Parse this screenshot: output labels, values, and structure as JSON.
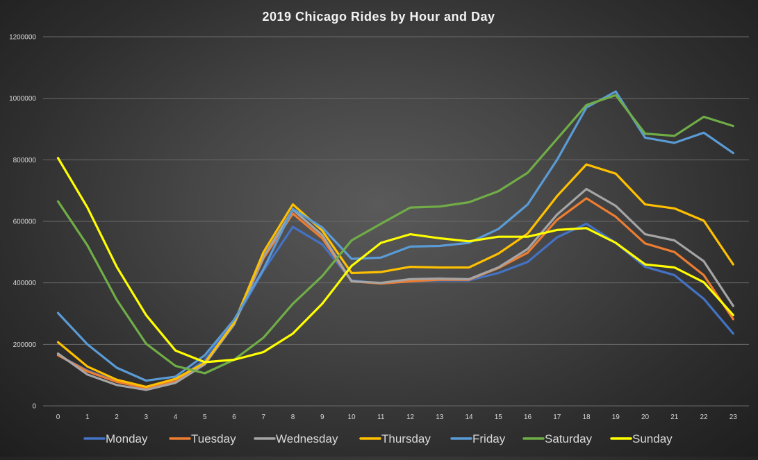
{
  "chart_data": {
    "type": "line",
    "title": "2019 Chicago Rides by Hour and Day",
    "xlabel": "",
    "ylabel": "",
    "x": [
      0,
      1,
      2,
      3,
      4,
      5,
      6,
      7,
      8,
      9,
      10,
      11,
      12,
      13,
      14,
      15,
      16,
      17,
      18,
      19,
      20,
      21,
      22,
      23
    ],
    "ylim": [
      0,
      1200000
    ],
    "yticks": [
      0,
      200000,
      400000,
      600000,
      800000,
      1000000,
      1200000
    ],
    "grid": true,
    "legend_position": "bottom",
    "series": [
      {
        "name": "Monday",
        "color": "#4472c4",
        "values": [
          165000,
          115000,
          80000,
          60000,
          82000,
          150000,
          275000,
          440000,
          582000,
          525000,
          408000,
          398000,
          405000,
          408000,
          408000,
          432000,
          468000,
          548000,
          592000,
          530000,
          452000,
          425000,
          348000,
          235000
        ]
      },
      {
        "name": "Tuesday",
        "color": "#ed7d31",
        "values": [
          165000,
          112000,
          78000,
          58000,
          80000,
          138000,
          268000,
          480000,
          625000,
          545000,
          405000,
          398000,
          405000,
          410000,
          410000,
          448000,
          498000,
          605000,
          675000,
          615000,
          528000,
          500000,
          425000,
          282000
        ]
      },
      {
        "name": "Wednesday",
        "color": "#a5a5a5",
        "values": [
          170000,
          102000,
          68000,
          52000,
          75000,
          135000,
          265000,
          485000,
          638000,
          555000,
          405000,
          400000,
          412000,
          414000,
          412000,
          450000,
          510000,
          622000,
          705000,
          650000,
          558000,
          538000,
          470000,
          325000
        ]
      },
      {
        "name": "Thursday",
        "color": "#ffc000",
        "values": [
          207000,
          128000,
          85000,
          62000,
          88000,
          140000,
          270000,
          500000,
          655000,
          570000,
          432000,
          435000,
          452000,
          450000,
          450000,
          495000,
          560000,
          682000,
          785000,
          755000,
          655000,
          642000,
          602000,
          460000
        ]
      },
      {
        "name": "Friday",
        "color": "#5b9bd5",
        "values": [
          302000,
          200000,
          124000,
          82000,
          95000,
          165000,
          280000,
          445000,
          640000,
          580000,
          478000,
          482000,
          518000,
          520000,
          530000,
          575000,
          655000,
          800000,
          970000,
          1022000,
          872000,
          855000,
          888000,
          822000
        ]
      },
      {
        "name": "Saturday",
        "color": "#70ad47",
        "values": [
          665000,
          522000,
          345000,
          202000,
          130000,
          106000,
          150000,
          222000,
          332000,
          422000,
          538000,
          592000,
          645000,
          648000,
          662000,
          698000,
          758000,
          868000,
          978000,
          1010000,
          885000,
          878000,
          940000,
          910000
        ]
      },
      {
        "name": "Sunday",
        "color": "#ffff00",
        "values": [
          806000,
          645000,
          452000,
          295000,
          180000,
          142000,
          150000,
          175000,
          235000,
          332000,
          455000,
          530000,
          558000,
          545000,
          535000,
          550000,
          550000,
          572000,
          578000,
          530000,
          460000,
          450000,
          402000,
          295000
        ]
      }
    ]
  }
}
